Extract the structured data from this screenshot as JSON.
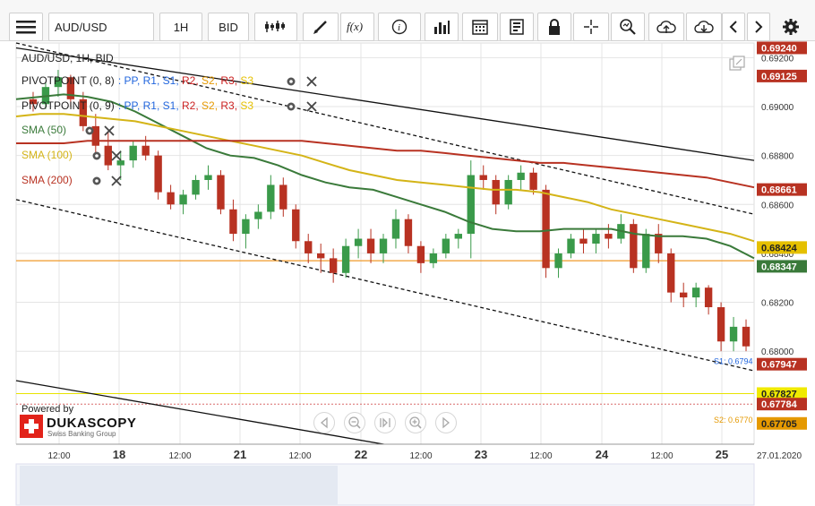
{
  "toolbar": {
    "instrument": "AUD/USD",
    "timeframe": "1H",
    "price_side": "BID",
    "icons": [
      "menu-icon",
      "chart-style-icon",
      "draw-line-icon",
      "indicator-fx-icon",
      "info-icon",
      "bar-volume-icon",
      "calendar-icon",
      "report-icon",
      "lock-icon",
      "crosshair-icon",
      "zoom-icon",
      "upload-icon",
      "download-icon",
      "chevron-left-icon",
      "chevron-right-icon",
      "gear-icon"
    ]
  },
  "overlay": {
    "instrument_label": "AUD/USD, 1H, BID",
    "pivot1_label": "PIVOTPOINT (0, 8)",
    "pivot2_label": "PIVOTPOINT (0, 9)",
    "pivot_items": [
      "PP",
      "R1",
      "S1",
      "R2",
      "S2",
      "R3",
      "S3"
    ],
    "pivot_colors": [
      "#2266dd",
      "#2266dd",
      "#2266dd",
      "#cc2222",
      "#e59900",
      "#cc2222",
      "#e5c000"
    ],
    "sma50_label": "SMA (50)",
    "sma100_label": "SMA (100)",
    "sma200_label": "SMA (200)",
    "s1_label": "S1: 0.6794",
    "s2_label": "S2: 0.6770",
    "powered_by": "Powered by",
    "brand": "DUKASCOPY",
    "brand_sub": "Swiss Banking Group"
  },
  "colors": {
    "sma50": "#3a7a3a",
    "sma100": "#d4b417",
    "sma200": "#b83222",
    "orange_line": "#f09a2a",
    "up_candle": "#3a9a4a",
    "down_candle": "#b83222",
    "grid": "#e4e4e4"
  },
  "chart_data": {
    "type": "line",
    "instrument": "AUD/USD",
    "timeframe": "1H",
    "ylim": [
      0.6762,
      0.6926
    ],
    "y_ticks": [
      0.68,
      0.682,
      0.684,
      0.686,
      0.688,
      0.69,
      0.692
    ],
    "y_tick_labels": [
      "0.68000",
      "0.68200",
      "0.68400",
      "0.68600",
      "0.68800",
      "0.69000",
      "0.69200"
    ],
    "x_ticks": [
      "12:00",
      "18",
      "12:00",
      "21",
      "12:00",
      "22",
      "12:00",
      "23",
      "12:00",
      "24",
      "12:00",
      "25",
      "27.01.2020"
    ],
    "price_tags": [
      {
        "value": "0.69240",
        "color": "#b83222"
      },
      {
        "value": "0.69125",
        "color": "#b83222"
      },
      {
        "value": "0.68661",
        "color": "#b83222"
      },
      {
        "value": "0.68424",
        "color": "#e5c000"
      },
      {
        "value": "0.68347",
        "color": "#3a7a3a"
      },
      {
        "value": "0.67947",
        "color": "#b83222"
      },
      {
        "value": "0.67827",
        "color": "#f0ea00"
      },
      {
        "value": "0.67784",
        "color": "#b83222"
      },
      {
        "value": "0.67705",
        "color": "#e59900"
      }
    ],
    "orange_level": 0.6837,
    "series": [
      {
        "name": "SMA (50)",
        "values": [
          0.6903,
          0.6904,
          0.6905,
          0.6904,
          0.6902,
          0.6898,
          0.6893,
          0.6888,
          0.6883,
          0.688,
          0.6879,
          0.6876,
          0.6872,
          0.6869,
          0.6867,
          0.6866,
          0.6863,
          0.686,
          0.6857,
          0.6853,
          0.685,
          0.6849,
          0.6849,
          0.685,
          0.685,
          0.685,
          0.6848,
          0.6847,
          0.6847,
          0.6846,
          0.6843,
          0.6838
        ]
      },
      {
        "name": "SMA (100)",
        "values": [
          0.6896,
          0.6897,
          0.6897,
          0.6896,
          0.6895,
          0.6894,
          0.6892,
          0.689,
          0.6888,
          0.6886,
          0.6884,
          0.6882,
          0.688,
          0.6877,
          0.6874,
          0.6872,
          0.687,
          0.6869,
          0.6868,
          0.6867,
          0.6866,
          0.6866,
          0.6865,
          0.6863,
          0.6861,
          0.6858,
          0.6856,
          0.6854,
          0.6852,
          0.685,
          0.6848,
          0.6845
        ]
      },
      {
        "name": "SMA (200)",
        "values": [
          0.6885,
          0.6885,
          0.6885,
          0.6886,
          0.6886,
          0.6886,
          0.6886,
          0.6886,
          0.6886,
          0.6886,
          0.6886,
          0.6886,
          0.6886,
          0.6885,
          0.6884,
          0.6883,
          0.6882,
          0.6882,
          0.6881,
          0.688,
          0.6879,
          0.6878,
          0.6877,
          0.6877,
          0.6876,
          0.6875,
          0.6874,
          0.6873,
          0.6872,
          0.6871,
          0.6869,
          0.6867
        ]
      }
    ],
    "candles": [
      [
        0.6903,
        0.6906,
        0.6898,
        0.6901
      ],
      [
        0.6901,
        0.691,
        0.6899,
        0.6908
      ],
      [
        0.6908,
        0.6915,
        0.6904,
        0.6912
      ],
      [
        0.6912,
        0.6913,
        0.69,
        0.6903
      ],
      [
        0.6903,
        0.6906,
        0.689,
        0.6892
      ],
      [
        0.6892,
        0.6897,
        0.688,
        0.6884
      ],
      [
        0.6884,
        0.689,
        0.6874,
        0.6876
      ],
      [
        0.6876,
        0.6882,
        0.687,
        0.6878
      ],
      [
        0.6878,
        0.6886,
        0.6875,
        0.6884
      ],
      [
        0.6884,
        0.6888,
        0.6878,
        0.688
      ],
      [
        0.688,
        0.6882,
        0.6862,
        0.6865
      ],
      [
        0.6865,
        0.6868,
        0.6858,
        0.686
      ],
      [
        0.686,
        0.6866,
        0.6856,
        0.6864
      ],
      [
        0.6864,
        0.6872,
        0.6862,
        0.687
      ],
      [
        0.687,
        0.6876,
        0.6866,
        0.6872
      ],
      [
        0.6872,
        0.6874,
        0.6856,
        0.6858
      ],
      [
        0.6858,
        0.6862,
        0.6845,
        0.6848
      ],
      [
        0.6848,
        0.6856,
        0.6842,
        0.6854
      ],
      [
        0.6854,
        0.686,
        0.685,
        0.6857
      ],
      [
        0.6857,
        0.6872,
        0.6854,
        0.6868
      ],
      [
        0.6868,
        0.6871,
        0.6855,
        0.6858
      ],
      [
        0.6858,
        0.686,
        0.6842,
        0.6845
      ],
      [
        0.6845,
        0.6848,
        0.6836,
        0.684
      ],
      [
        0.684,
        0.6844,
        0.6832,
        0.6838
      ],
      [
        0.6838,
        0.6842,
        0.6828,
        0.6832
      ],
      [
        0.6832,
        0.6846,
        0.683,
        0.6843
      ],
      [
        0.6843,
        0.685,
        0.6838,
        0.6846
      ],
      [
        0.6846,
        0.685,
        0.6836,
        0.684
      ],
      [
        0.684,
        0.6848,
        0.6836,
        0.6846
      ],
      [
        0.6846,
        0.6858,
        0.6842,
        0.6854
      ],
      [
        0.6854,
        0.6856,
        0.684,
        0.6843
      ],
      [
        0.6843,
        0.6845,
        0.6832,
        0.6836
      ],
      [
        0.6836,
        0.6842,
        0.6834,
        0.684
      ],
      [
        0.684,
        0.6848,
        0.6838,
        0.6846
      ],
      [
        0.6846,
        0.685,
        0.6842,
        0.6848
      ],
      [
        0.6848,
        0.6878,
        0.6838,
        0.6872
      ],
      [
        0.6872,
        0.6876,
        0.6866,
        0.687
      ],
      [
        0.687,
        0.6872,
        0.6856,
        0.686
      ],
      [
        0.686,
        0.6872,
        0.6858,
        0.687
      ],
      [
        0.687,
        0.6876,
        0.6866,
        0.6873
      ],
      [
        0.6873,
        0.6875,
        0.6864,
        0.6866
      ],
      [
        0.6866,
        0.6868,
        0.683,
        0.6834
      ],
      [
        0.6834,
        0.6842,
        0.683,
        0.684
      ],
      [
        0.684,
        0.6848,
        0.6838,
        0.6846
      ],
      [
        0.6846,
        0.685,
        0.684,
        0.6844
      ],
      [
        0.6844,
        0.685,
        0.684,
        0.6848
      ],
      [
        0.6848,
        0.6852,
        0.6842,
        0.6846
      ],
      [
        0.6846,
        0.6856,
        0.6844,
        0.6852
      ],
      [
        0.6852,
        0.6854,
        0.6832,
        0.6834
      ],
      [
        0.6834,
        0.685,
        0.6832,
        0.6848
      ],
      [
        0.6848,
        0.6852,
        0.6836,
        0.684
      ],
      [
        0.684,
        0.6842,
        0.682,
        0.6824
      ],
      [
        0.6824,
        0.6828,
        0.6818,
        0.6822
      ],
      [
        0.6822,
        0.6828,
        0.6818,
        0.6826
      ],
      [
        0.6826,
        0.6827,
        0.6815,
        0.6818
      ],
      [
        0.6818,
        0.682,
        0.68,
        0.6804
      ],
      [
        0.6804,
        0.6814,
        0.68,
        0.681
      ],
      [
        0.681,
        0.6813,
        0.68,
        0.6802
      ]
    ]
  }
}
